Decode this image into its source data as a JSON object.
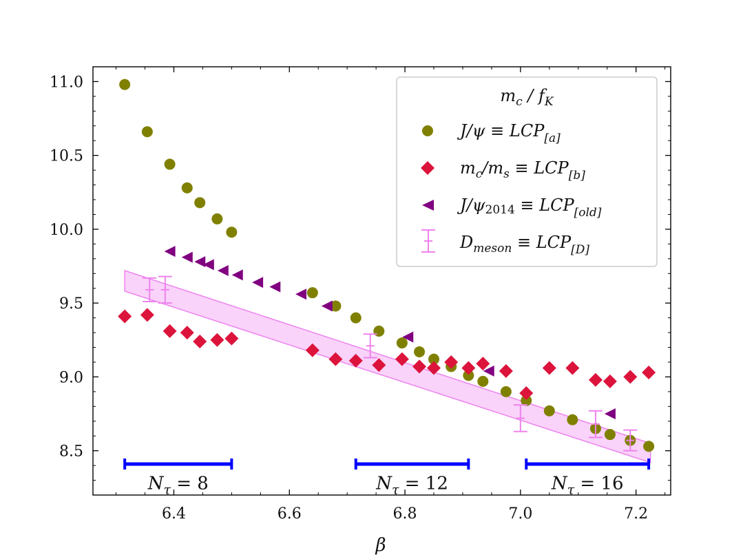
{
  "chart_data": {
    "type": "scatter",
    "xlabel": "β",
    "ylabel": "",
    "xlim": [
      6.26,
      7.26
    ],
    "ylim": [
      8.2,
      11.1
    ],
    "x_ticks": [
      "6.4",
      "6.6",
      "6.8",
      "7.0",
      "7.2"
    ],
    "x_tick_values": [
      6.4,
      6.6,
      6.8,
      7.0,
      7.2
    ],
    "y_ticks": [
      "8.5",
      "9.0",
      "9.5",
      "10.0",
      "10.5",
      "11.0"
    ],
    "y_tick_values": [
      8.5,
      9.0,
      9.5,
      10.0,
      10.5,
      11.0
    ],
    "legend": {
      "title": "mc / fK",
      "location": "upper right",
      "entries": [
        {
          "key": "a",
          "label": "J/ψ ≡ LCP[a]"
        },
        {
          "key": "b",
          "label": "mc/ms ≡ LCP[b]"
        },
        {
          "key": "old",
          "label": "J/ψ2014 ≡ LCP[old]"
        },
        {
          "key": "D",
          "label": "Dmeson ≡ LCP[D]"
        }
      ]
    },
    "series": [
      {
        "name": "J/ψ ≡ LCP[a]",
        "marker": "circle",
        "color": "#808000",
        "x": [
          6.315,
          6.354,
          6.393,
          6.423,
          6.445,
          6.475,
          6.5,
          6.64,
          6.68,
          6.715,
          6.755,
          6.795,
          6.825,
          6.85,
          6.88,
          6.91,
          6.935,
          6.975,
          7.01,
          7.05,
          7.09,
          7.13,
          7.155,
          7.19,
          7.222
        ],
        "values": [
          10.98,
          10.66,
          10.44,
          10.28,
          10.18,
          10.07,
          9.98,
          9.57,
          9.48,
          9.4,
          9.31,
          9.23,
          9.17,
          9.12,
          9.07,
          9.01,
          8.97,
          8.9,
          8.84,
          8.77,
          8.71,
          8.65,
          8.61,
          8.57,
          8.53
        ]
      },
      {
        "name": "mc/ms ≡ LCP[b]",
        "marker": "diamond",
        "color": "#dc143c",
        "x": [
          6.315,
          6.354,
          6.393,
          6.423,
          6.445,
          6.475,
          6.5,
          6.64,
          6.68,
          6.715,
          6.755,
          6.795,
          6.825,
          6.85,
          6.88,
          6.91,
          6.935,
          6.975,
          7.01,
          7.05,
          7.09,
          7.13,
          7.155,
          7.19,
          7.222
        ],
        "values": [
          9.41,
          9.42,
          9.31,
          9.3,
          9.24,
          9.25,
          9.26,
          9.18,
          9.12,
          9.11,
          9.08,
          9.12,
          9.07,
          9.06,
          9.1,
          9.06,
          9.09,
          9.04,
          8.89,
          9.06,
          9.06,
          8.98,
          8.97,
          9.0,
          9.03
        ]
      },
      {
        "name": "J/ψ2014 ≡ LCP[old]",
        "marker": "triangle-left",
        "color": "#800080",
        "x": [
          6.393,
          6.423,
          6.445,
          6.46,
          6.485,
          6.51,
          6.545,
          6.575,
          6.62,
          6.665,
          6.805,
          6.945,
          7.155
        ],
        "values": [
          9.85,
          9.81,
          9.78,
          9.76,
          9.72,
          9.69,
          9.64,
          9.61,
          9.56,
          9.48,
          9.27,
          9.04,
          8.75
        ]
      },
      {
        "name": "Dmeson ≡ LCP[D]",
        "marker": "errorbar",
        "color": "#ee82ee",
        "x": [
          6.358,
          6.385,
          6.74,
          7.0,
          7.13,
          7.19
        ],
        "values": [
          9.59,
          9.59,
          9.21,
          8.72,
          8.68,
          8.57
        ],
        "errors": [
          0.08,
          0.09,
          0.08,
          0.09,
          0.09,
          0.07
        ]
      }
    ],
    "band": {
      "name": "LCP[D] fit band",
      "color": "#ee82ee",
      "x": [
        6.315,
        7.225
      ],
      "upper": [
        9.72,
        8.55
      ],
      "lower": [
        9.58,
        8.42
      ]
    },
    "ntau_bars": [
      {
        "label": "Nτ = 8",
        "sym": "N",
        "sub": "τ",
        "rest": " = 8",
        "x_start": 6.315,
        "x_end": 6.5,
        "y": 8.41,
        "text_y": 8.24
      },
      {
        "label": "Nτ = 12",
        "sym": "N",
        "sub": "τ",
        "rest": " = 12",
        "x_start": 6.715,
        "x_end": 6.91,
        "y": 8.41,
        "text_y": 8.24
      },
      {
        "label": "Nτ = 16",
        "sym": "N",
        "sub": "τ",
        "rest": " = 16",
        "x_start": 7.01,
        "x_end": 7.222,
        "y": 8.41,
        "text_y": 8.24
      }
    ],
    "ntau_color": "#0000ff"
  }
}
